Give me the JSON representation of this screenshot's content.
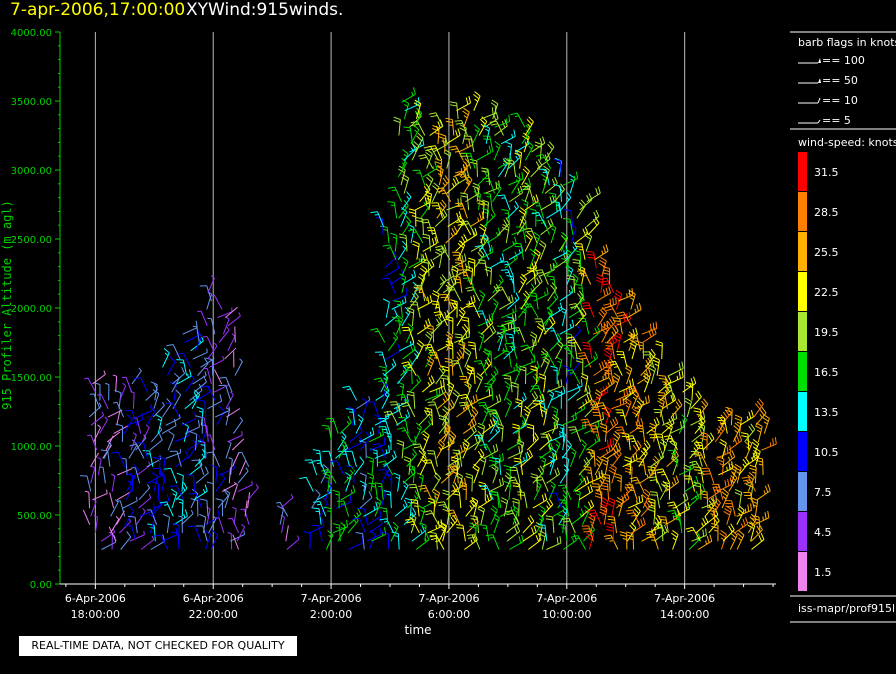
{
  "title": {
    "datetime": "7-apr-2006,17:00:00",
    "name": "XYWind:915winds."
  },
  "note": "REAL-TIME DATA, NOT CHECKED FOR QUALITY",
  "source_label": "iss-mapr/prof915l",
  "colors": {
    "axis": "#00d000",
    "grid": "#bbbbbb",
    "title_date": "#ffff00"
  },
  "barb_legend": {
    "title": "barb flags in knots",
    "entries": [
      {
        "label": "== 100",
        "value": 100
      },
      {
        "label": "== 50",
        "value": 50
      },
      {
        "label": "== 10",
        "value": 10
      },
      {
        "label": "== 5",
        "value": 5
      }
    ]
  },
  "speed_legend": {
    "title": "wind-speed: knots",
    "bins": [
      {
        "label": "31.5",
        "color": "#ff0000"
      },
      {
        "label": "28.5",
        "color": "#ff8000"
      },
      {
        "label": "25.5",
        "color": "#ffb000"
      },
      {
        "label": "22.5",
        "color": "#ffff00"
      },
      {
        "label": "19.5",
        "color": "#a8e830"
      },
      {
        "label": "16.5",
        "color": "#00dd00"
      },
      {
        "label": "13.5",
        "color": "#00ffff"
      },
      {
        "label": "10.5",
        "color": "#0000ff"
      },
      {
        "label": "7.5",
        "color": "#6495ed"
      },
      {
        "label": "4.5",
        "color": "#9b30ff"
      },
      {
        "label": "1.5",
        "color": "#ee82ee"
      }
    ]
  },
  "chart_data": {
    "type": "scatter",
    "subtype": "wind-barb time-height",
    "xlabel": "time",
    "ylabel": "915 Profiler Altitude (m agl)",
    "x_range_hours": [
      -1.2,
      23.1
    ],
    "ylim": [
      0,
      4000
    ],
    "y_ticks": [
      "0.00",
      "500.00",
      "1000.00",
      "1500.00",
      "2000.00",
      "2500.00",
      "3000.00",
      "3500.00",
      "4000.00"
    ],
    "x_ticks": [
      {
        "line1": "6-Apr-2006",
        "line2": "18:00:00",
        "hour": 0
      },
      {
        "line1": "6-Apr-2006",
        "line2": "22:00:00",
        "hour": 4
      },
      {
        "line1": "7-Apr-2006",
        "line2": "2:00:00",
        "hour": 8
      },
      {
        "line1": "7-Apr-2006",
        "line2": "6:00:00",
        "hour": 12
      },
      {
        "line1": "7-Apr-2006",
        "line2": "10:00:00",
        "hour": 16
      },
      {
        "line1": "7-Apr-2006",
        "line2": "14:00:00",
        "hour": 20
      }
    ],
    "grid": "vertical",
    "profiles": [
      {
        "hour": 0.0,
        "top": 1500,
        "speed": 4.5
      },
      {
        "hour": 0.5,
        "top": 1400,
        "speed": 4.5
      },
      {
        "hour": 1.0,
        "top": 1450,
        "speed": 7.5
      },
      {
        "hour": 1.5,
        "top": 1350,
        "speed": 7.5
      },
      {
        "hour": 2.0,
        "top": 1400,
        "speed": 10.5
      },
      {
        "hour": 2.5,
        "top": 1600,
        "speed": 10.5
      },
      {
        "hour": 3.0,
        "top": 1850,
        "speed": 10.5
      },
      {
        "hour": 3.5,
        "top": 1750,
        "speed": 10.5
      },
      {
        "hour": 4.0,
        "top": 2150,
        "speed": 7.5
      },
      {
        "hour": 4.5,
        "top": 2000,
        "speed": 4.5
      },
      {
        "hour": 5.0,
        "top": 900,
        "speed": 4.5
      },
      {
        "hour": 6.5,
        "top": 600,
        "speed": 4.5
      },
      {
        "hour": 7.5,
        "top": 850,
        "speed": 10.5
      },
      {
        "hour": 8.0,
        "top": 1100,
        "speed": 13.5
      },
      {
        "hour": 8.5,
        "top": 1200,
        "speed": 13.5
      },
      {
        "hour": 9.0,
        "top": 1350,
        "speed": 10.5
      },
      {
        "hour": 9.5,
        "top": 1400,
        "speed": 13.5
      },
      {
        "hour": 10.0,
        "top": 2650,
        "speed": 13.5
      },
      {
        "hour": 10.5,
        "top": 3500,
        "speed": 16.5
      },
      {
        "hour": 11.0,
        "top": 3400,
        "speed": 19.5
      },
      {
        "hour": 11.5,
        "top": 3300,
        "speed": 22.5
      },
      {
        "hour": 12.0,
        "top": 3350,
        "speed": 22.5
      },
      {
        "hour": 12.5,
        "top": 3450,
        "speed": 22.5
      },
      {
        "hour": 13.0,
        "top": 3450,
        "speed": 19.5
      },
      {
        "hour": 13.5,
        "top": 3400,
        "speed": 16.5
      },
      {
        "hour": 14.0,
        "top": 3300,
        "speed": 16.5
      },
      {
        "hour": 14.5,
        "top": 3350,
        "speed": 19.5
      },
      {
        "hour": 15.0,
        "top": 3150,
        "speed": 19.5
      },
      {
        "hour": 15.5,
        "top": 3100,
        "speed": 16.5
      },
      {
        "hour": 16.0,
        "top": 2950,
        "speed": 13.5
      },
      {
        "hour": 16.5,
        "top": 2800,
        "speed": 19.5
      },
      {
        "hour": 17.0,
        "top": 2350,
        "speed": 28.5
      },
      {
        "hour": 17.5,
        "top": 2200,
        "speed": 28.5
      },
      {
        "hour": 18.0,
        "top": 2000,
        "speed": 25.5
      },
      {
        "hour": 18.5,
        "top": 1850,
        "speed": 25.5
      },
      {
        "hour": 19.0,
        "top": 1650,
        "speed": 22.5
      },
      {
        "hour": 19.5,
        "top": 1550,
        "speed": 22.5
      },
      {
        "hour": 20.0,
        "top": 1400,
        "speed": 19.5
      },
      {
        "hour": 20.5,
        "top": 1250,
        "speed": 22.5
      },
      {
        "hour": 21.0,
        "top": 1200,
        "speed": 25.5
      },
      {
        "hour": 21.5,
        "top": 1200,
        "speed": 25.5
      },
      {
        "hour": 22.0,
        "top": 1150,
        "speed": 22.5
      },
      {
        "hour": 22.5,
        "top": 1250,
        "speed": 25.5
      }
    ]
  }
}
